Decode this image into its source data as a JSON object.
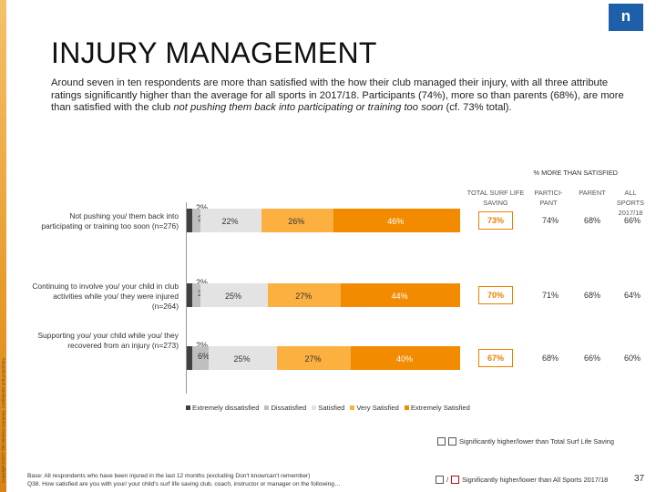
{
  "side_text": "Copyright ©2017 The Nielsen Company. Confidential and proprietary.",
  "logo": "n",
  "title": "INJURY MANAGEMENT",
  "subtitle_pre": "Around seven in ten respondents are more than satisfied with the how their club managed their injury, with all three attribute ratings significantly higher than the average for all sports in 2017/18. Participants (74%), more so than parents (68%), are more than satisfied with the club ",
  "subtitle_em": "not pushing them back into participating or training too soon",
  "subtitle_post": " (cf. 73% total).",
  "pct_header": "% MORE THAN SATISFIED",
  "columns": {
    "total": "TOTAL SURF LIFE SAVING",
    "participant": "PARTICI-PANT",
    "parent": "PARENT",
    "all_sports": "ALL SPORTS 2017/18"
  },
  "colors": {
    "extremely_dissatisfied": "#404040",
    "dissatisfied": "#bfbfbf",
    "satisfied": "#e3e3e3",
    "very_satisfied": "#fbb040",
    "extremely_satisfied": "#f28b00",
    "accent": "#ec7f00",
    "brand": "#1d5fa8"
  },
  "chart_data": {
    "type": "bar",
    "orientation": "horizontal",
    "stacked": true,
    "categories": [
      "Not pushing you/ them back into participating or training too soon (n=276)",
      "Continuing to involve you/ your child in club activities while you/ they were injured (n=264)",
      "Supporting you/ your child while you/ they recovered from an injury (n=273)"
    ],
    "series": [
      {
        "name": "Extremely dissatisfied",
        "values": [
          2,
          2,
          2
        ],
        "labels": [
          "2%",
          "2%",
          "2%"
        ]
      },
      {
        "name": "Dissatisfied",
        "values": [
          3,
          3,
          6
        ],
        "labels": [
          "3%",
          "3%",
          "6%"
        ]
      },
      {
        "name": "Satisfied",
        "values": [
          22,
          25,
          25
        ],
        "labels": [
          "22%",
          "25%",
          "25%"
        ]
      },
      {
        "name": "Very Satisfied",
        "values": [
          26,
          27,
          27
        ],
        "labels": [
          "26%",
          "27%",
          "27%"
        ]
      },
      {
        "name": "Extremely Satisfied",
        "values": [
          46,
          44,
          40
        ],
        "labels": [
          "46%",
          "44%",
          "40%"
        ]
      }
    ],
    "table": {
      "total": [
        "73%",
        "70%",
        "67%"
      ],
      "participant": [
        "74%",
        "71%",
        "68%"
      ],
      "parent": [
        "68%",
        "68%",
        "66%"
      ],
      "all_sports": [
        "66%",
        "64%",
        "60%"
      ]
    },
    "xlim": [
      0,
      100
    ],
    "legend_position": "bottom-left"
  },
  "legend": [
    "Extremely dissatisfied",
    "Dissatisfied",
    "Satisfied",
    "Very Satisfied",
    "Extremely Satisfied"
  ],
  "key_total": "Significantly higher/lower than Total Surf Life Saving",
  "key_all_sports_sep": "/",
  "key_all_sports": "Significantly higher/lower than All Sports 2017/18",
  "footnote_base": "Base: All respondents who have been injured in the last 12 months (excluding Don't know/can't remember)",
  "footnote_q": "Q38. How satisfied are you with your/ your child's surf life saving club, coach, instructor or manager on the following…",
  "page_number": "37"
}
